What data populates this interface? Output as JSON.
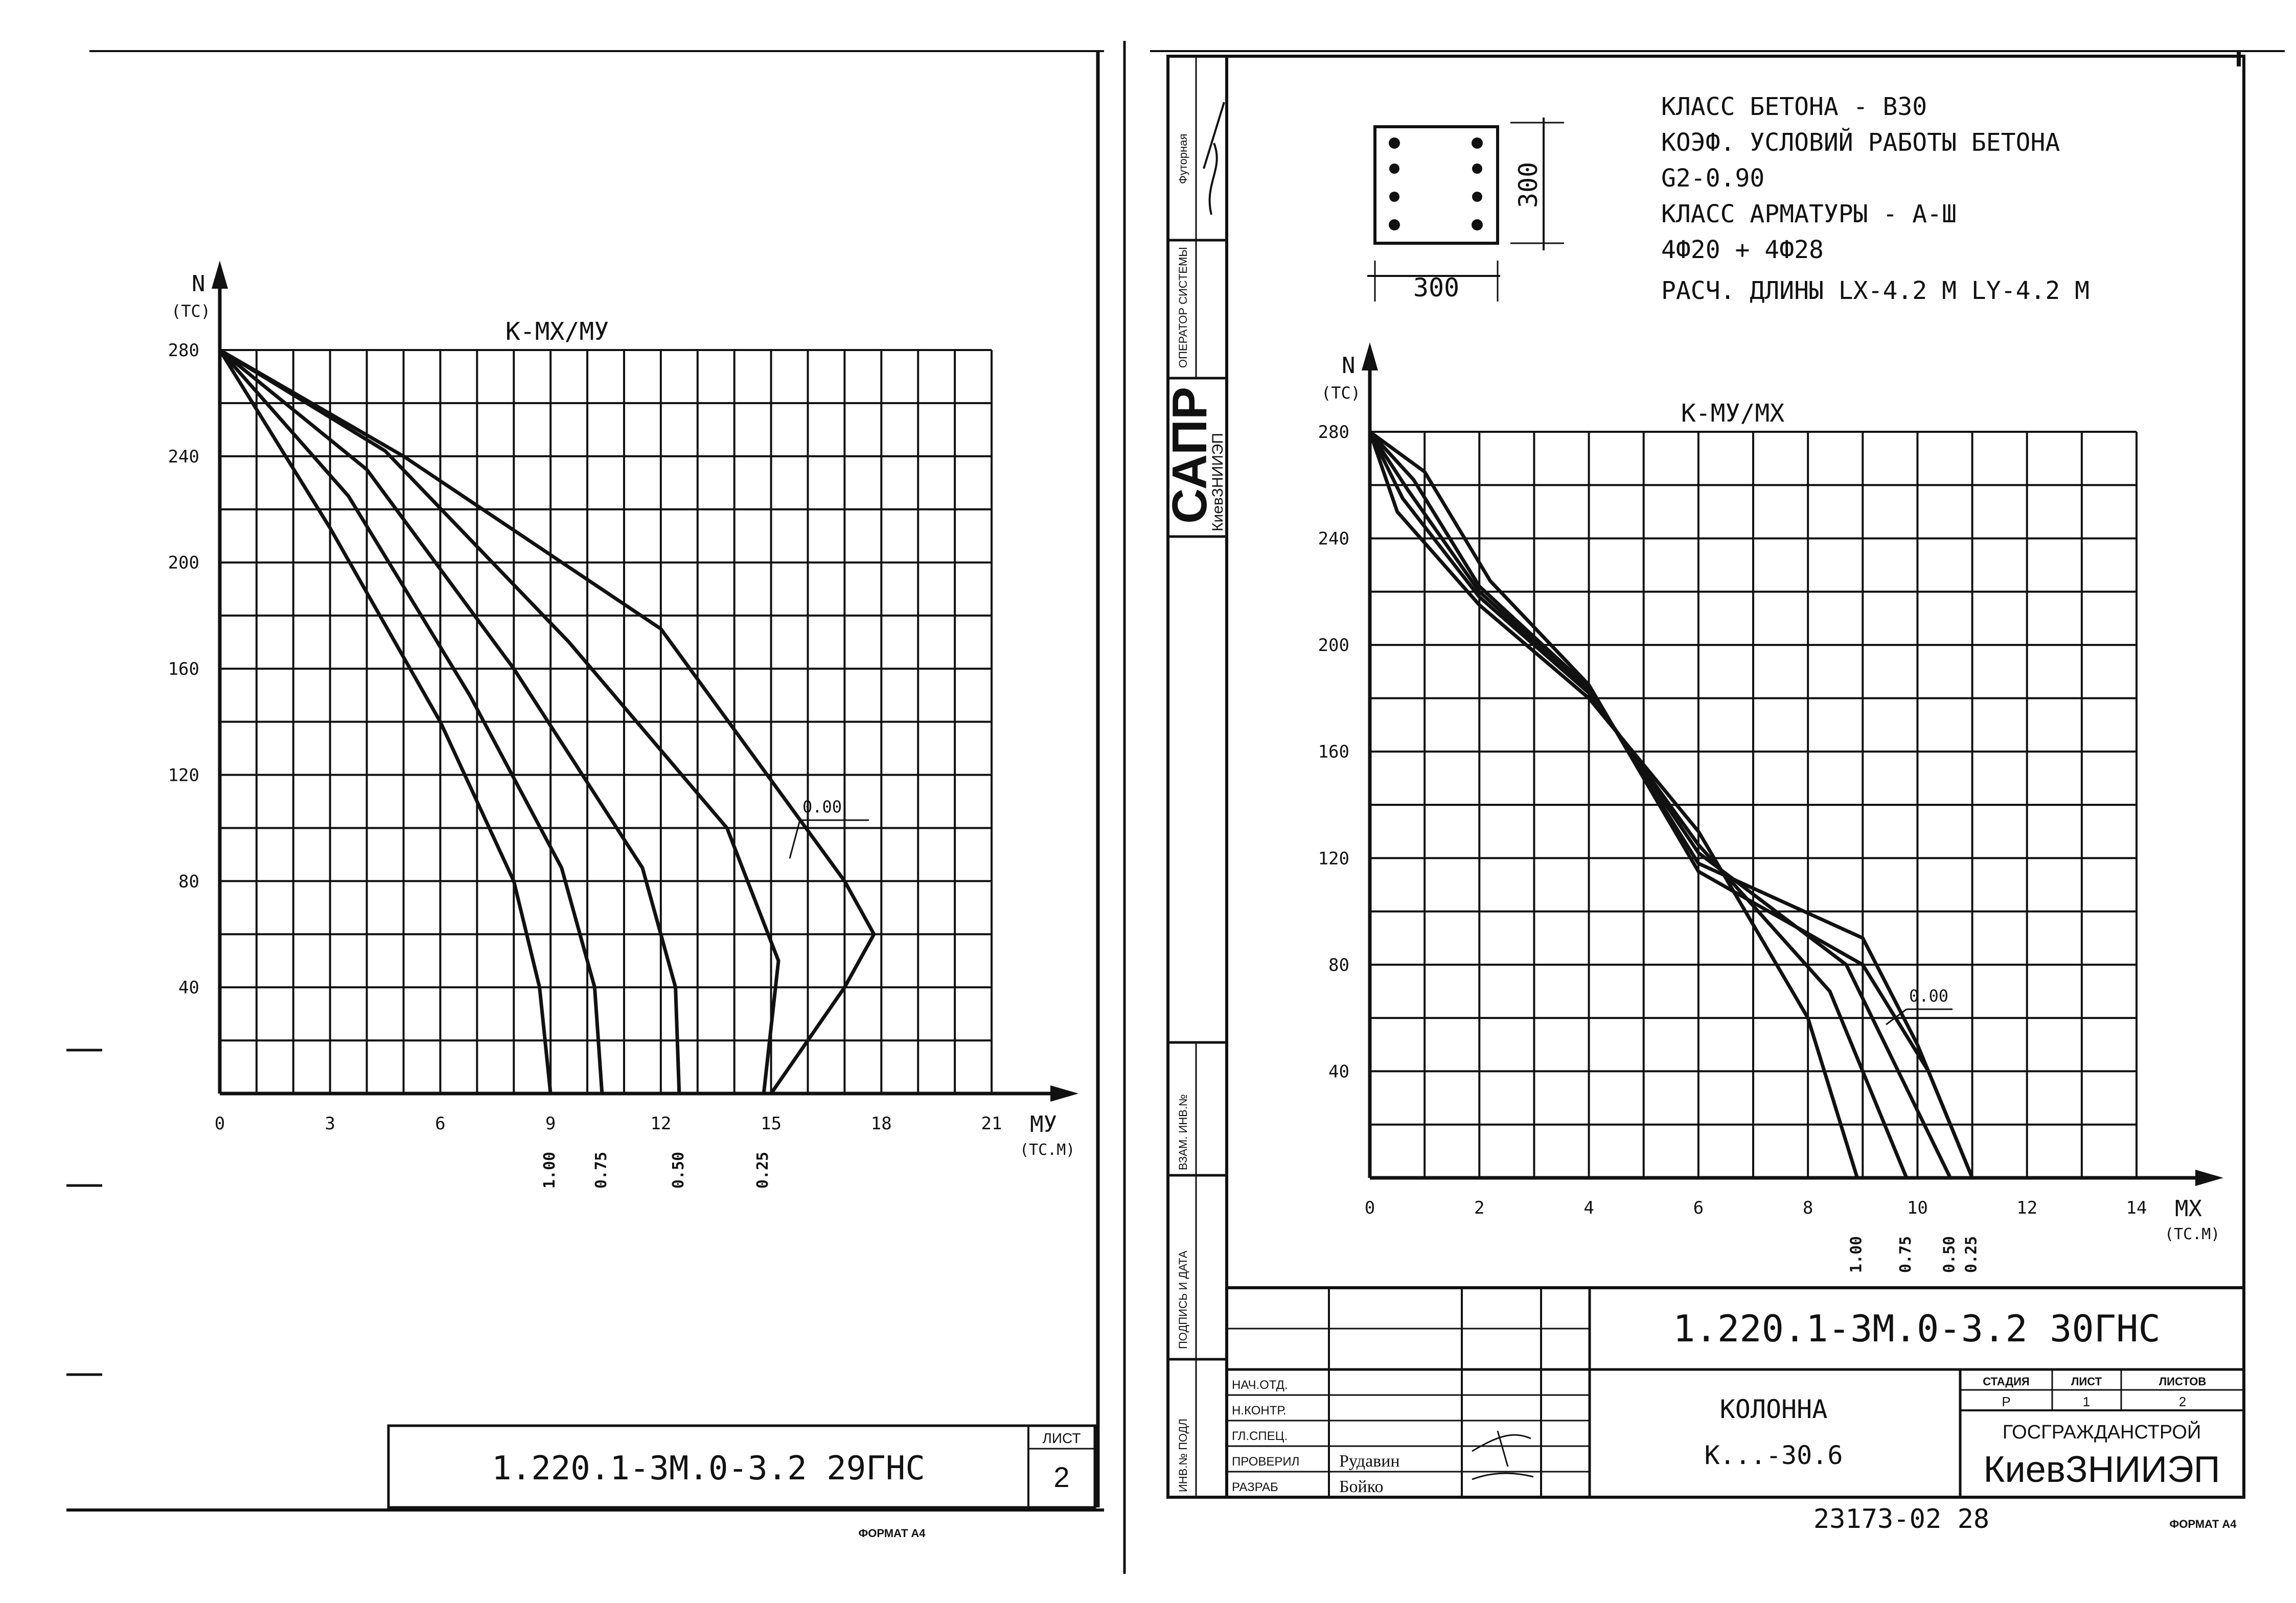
{
  "left_sheet": {
    "stamp_code": "1.220.1-3M.0-3.2 29ГНС",
    "sheet_label": "ЛИСТ",
    "sheet_number": "2",
    "format": "ФОРМАТ А4"
  },
  "right_sheet": {
    "spec_lines": [
      "КЛАСС БЕТОНА - В30",
      "КОЭФ. УСЛОВИЙ РАБОТЫ БЕТОНА",
      "G2-0.90",
      "КЛАСС АРМАТУРЫ - А-Ш",
      "4Ф20 + 4Ф28",
      "РАСЧ. ДЛИНЫ  LX-4.2 М  LY-4.2 М"
    ],
    "section_width": "300",
    "section_height": "300",
    "side_stamps": [
      "Футорная",
      "ОПЕРАТОР СИСТЕМЫ",
      "САПР",
      "КиевЗНИИЭП",
      "ВЗАМ. ИНВ.№",
      "ПОДПИСЬ И ДАТА",
      "ИНВ.№ ПОДЛ"
    ],
    "stamp_code": "1.220.1-3М.0-3.2 30ГНС",
    "role_labels": [
      "НАЧ.ОТД.",
      "Н.КОНТР.",
      "ГЛ.СПЕЦ.",
      "ПРОВЕРИЛ",
      "РАЗРАБ"
    ],
    "names": [
      "Рудавин",
      "Бойко"
    ],
    "title": "КОЛОННА",
    "mark": "К...-30.6",
    "stage_headers": [
      "СТАДИЯ",
      "ЛИСТ",
      "ЛИСТОВ"
    ],
    "stage_values": [
      "Р",
      "1",
      "2"
    ],
    "org_top": "ГОСГРАЖДАНСТРОЙ",
    "org_bottom": "КиевЗНИИЭП",
    "doc_number": "23173-02 28",
    "format": "ФОРМАТ А4"
  },
  "chart_data": [
    {
      "type": "line",
      "title": "К-МХ/МУ",
      "xlabel": "МУ",
      "xunit": "(ТС.М)",
      "ylabel": "N",
      "yunit": "(ТС)",
      "xlim": [
        0,
        21
      ],
      "ylim": [
        0,
        280
      ],
      "xticks": [
        0,
        3,
        6,
        9,
        12,
        15,
        18,
        21
      ],
      "yticks": [
        40,
        80,
        120,
        160,
        200,
        240,
        280
      ],
      "grid": true,
      "annotation": "0.00",
      "series": [
        {
          "name": "1.00",
          "points": [
            [
              0,
              280
            ],
            [
              3,
              213
            ],
            [
              6,
              140
            ],
            [
              8,
              80
            ],
            [
              8.7,
              40
            ],
            [
              9,
              0
            ]
          ]
        },
        {
          "name": "0.75",
          "points": [
            [
              0,
              280
            ],
            [
              3.5,
              225
            ],
            [
              6.8,
              150
            ],
            [
              9.3,
              85
            ],
            [
              10.2,
              40
            ],
            [
              10.4,
              0
            ]
          ]
        },
        {
          "name": "0.50",
          "points": [
            [
              0,
              280
            ],
            [
              4,
              235
            ],
            [
              8,
              160
            ],
            [
              11.5,
              85
            ],
            [
              12.4,
              40
            ],
            [
              12.5,
              0
            ]
          ]
        },
        {
          "name": "0.25",
          "points": [
            [
              0,
              280
            ],
            [
              4.5,
              242
            ],
            [
              9.5,
              170
            ],
            [
              13.8,
              100
            ],
            [
              15.2,
              50
            ],
            [
              14.8,
              0
            ]
          ]
        },
        {
          "name": "0.00",
          "points": [
            [
              0,
              280
            ],
            [
              5,
              240
            ],
            [
              12,
              175
            ],
            [
              17,
              80
            ],
            [
              17.8,
              60
            ],
            [
              17,
              40
            ],
            [
              15,
              0
            ]
          ]
        }
      ]
    },
    {
      "type": "line",
      "title": "К-МУ/МХ",
      "xlabel": "МХ",
      "xunit": "(ТС.М)",
      "ylabel": "N",
      "yunit": "(ТС)",
      "xlim": [
        0,
        14
      ],
      "ylim": [
        0,
        280
      ],
      "xticks": [
        0,
        2,
        4,
        6,
        8,
        10,
        12,
        14
      ],
      "yticks": [
        40,
        80,
        120,
        160,
        200,
        240,
        280
      ],
      "grid": true,
      "annotation": "0.00",
      "series": [
        {
          "name": "1.00",
          "points": [
            [
              0,
              280
            ],
            [
              0.5,
              250
            ],
            [
              2,
              215
            ],
            [
              4,
              180
            ],
            [
              6,
              130
            ],
            [
              8,
              60
            ],
            [
              8.9,
              0
            ]
          ]
        },
        {
          "name": "0.75",
          "points": [
            [
              0,
              280
            ],
            [
              0.6,
              255
            ],
            [
              2,
              218
            ],
            [
              4,
              182
            ],
            [
              6,
              125
            ],
            [
              8.4,
              70
            ],
            [
              9.8,
              0
            ]
          ]
        },
        {
          "name": "0.50",
          "points": [
            [
              0,
              280
            ],
            [
              0.7,
              258
            ],
            [
              2,
              220
            ],
            [
              4,
              183
            ],
            [
              6,
              122
            ],
            [
              8.7,
              80
            ],
            [
              10.6,
              0
            ]
          ]
        },
        {
          "name": "0.25",
          "points": [
            [
              0,
              280
            ],
            [
              0.8,
              262
            ],
            [
              2,
              222
            ],
            [
              4,
              184
            ],
            [
              6,
              118
            ],
            [
              9,
              90
            ],
            [
              10,
              50
            ],
            [
              11,
              0
            ]
          ]
        },
        {
          "name": "0.00",
          "points": [
            [
              0,
              280
            ],
            [
              1,
              265
            ],
            [
              2.2,
              224
            ],
            [
              4,
              185
            ],
            [
              6,
              115
            ],
            [
              9,
              80
            ],
            [
              10.2,
              40
            ],
            [
              11,
              0
            ]
          ]
        }
      ]
    }
  ]
}
